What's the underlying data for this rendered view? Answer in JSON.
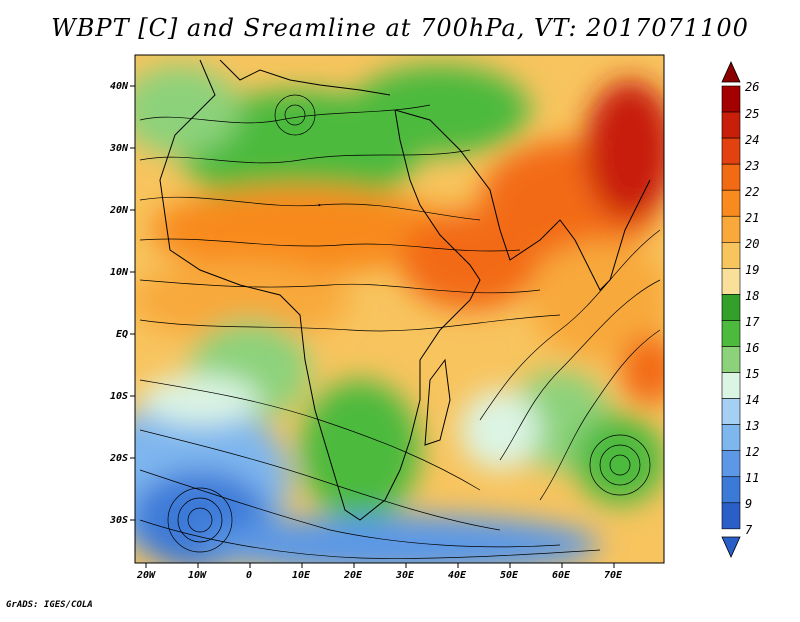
{
  "title": "WBPT [C] and Sreamline at 700hPa, VT: 2017071100",
  "footer": "GrADS: IGES/COLA",
  "map": {
    "lat_labels": [
      "40N",
      "30N",
      "20N",
      "10N",
      "EQ",
      "10S",
      "20S",
      "30S"
    ],
    "lon_labels": [
      "20W",
      "10W",
      "0",
      "10E",
      "20E",
      "30E",
      "40E",
      "50E",
      "60E",
      "70E"
    ],
    "field": "Wet-bulb potential temperature",
    "level": "700hPa",
    "valid_time": "2017071100"
  },
  "colorbar": {
    "labels": [
      "26",
      "25",
      "24",
      "23",
      "22",
      "21",
      "20",
      "19",
      "18",
      "17",
      "16",
      "15",
      "14",
      "13",
      "12",
      "11",
      "9",
      "7"
    ],
    "colors": [
      "#a50000",
      "#c81e0a",
      "#e3410f",
      "#f36a14",
      "#f88a1e",
      "#f8a93a",
      "#f8c45e",
      "#f8e09a",
      "#33a02c",
      "#4cba3c",
      "#8cd27a",
      "#dcf4e4",
      "#a4d0f4",
      "#7eb6ee",
      "#5c98e6",
      "#3c7ad8",
      "#2b5fc8"
    ]
  }
}
